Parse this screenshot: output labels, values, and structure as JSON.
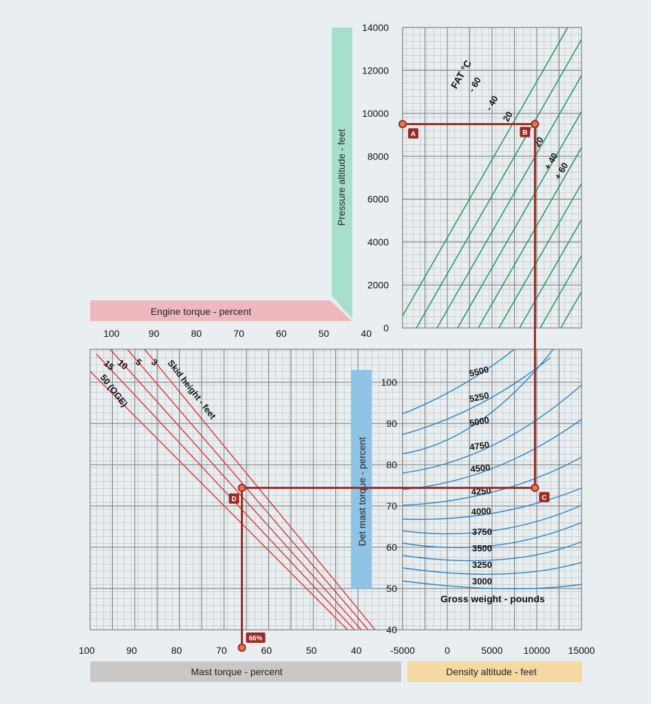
{
  "chart_data": {
    "type": "line",
    "colors": {
      "background": "#e9eef0",
      "grid": "#9aa3a7",
      "fat_lines": "#1f8a52",
      "gross_weight_curves": "#2a7fc0",
      "skid_lines": "#e0302e",
      "solution_path": "#9c2a24",
      "pressure_bar": "#a6e0cc",
      "engine_bar": "#efb8be",
      "mast_det_bar": "#8fc4e6",
      "mast_bar": "#c8c8c8",
      "density_bar": "#f4d9a0"
    },
    "pressure_altitude": {
      "label": "Pressure altitude - feet",
      "ticks": [
        "14000",
        "12000",
        "10000",
        "8000",
        "6000",
        "4000",
        "2000",
        "0"
      ],
      "fat_title": "FAT °C",
      "fat_labels": [
        "- 60",
        "- 40",
        "20",
        "20",
        "+ 40",
        "+ 60"
      ]
    },
    "engine_torque": {
      "label": "Engine torque - percent",
      "ticks": [
        "100",
        "90",
        "80",
        "70",
        "60",
        "50",
        "40"
      ]
    },
    "skid_height": {
      "label": "Skid height - feet",
      "lines": [
        "3",
        "5",
        "10",
        "15",
        "50 (OGE)"
      ]
    },
    "det_mast_torque": {
      "label": "Det mast torque - percent",
      "ticks": [
        "100",
        "90",
        "80",
        "70",
        "60",
        "50",
        "40"
      ]
    },
    "gross_weight": {
      "label": "Gross weight - pounds",
      "curves": [
        "5500",
        "5250",
        "5000",
        "4750",
        "4500",
        "4250",
        "4000",
        "3750",
        "3500",
        "3250",
        "3000"
      ]
    },
    "mast_torque": {
      "label": "Mast torque - percent",
      "ticks": [
        "100",
        "90",
        "80",
        "70",
        "60",
        "50",
        "40"
      ]
    },
    "density_altitude": {
      "label": "Density altitude - feet",
      "ticks": [
        "-5000",
        "0",
        "5000",
        "10000",
        "15000"
      ]
    },
    "points": {
      "A": "A",
      "B": "B",
      "C": "C",
      "D": "D",
      "result": "66%"
    },
    "solution": {
      "pressure_altitude_ft": 9500,
      "density_altitude_ft": 9800,
      "det_mast_torque_pct": 74.4,
      "mast_torque_pct": 66
    }
  }
}
